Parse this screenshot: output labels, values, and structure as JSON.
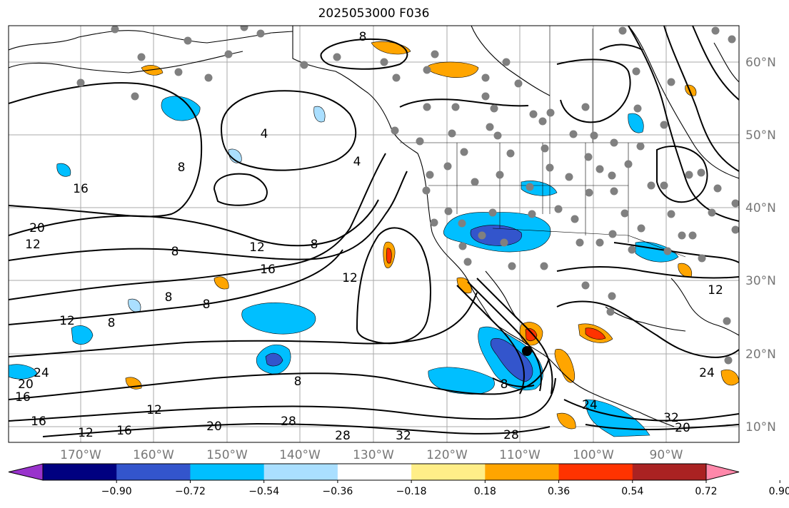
{
  "title": "2025053000 F036",
  "longitude_labels": [
    "170°W",
    "160°W",
    "150°W",
    "140°W",
    "130°W",
    "120°W",
    "110°W",
    "100°W",
    "90°W"
  ],
  "latitude_labels": [
    "60°N",
    "50°N",
    "40°N",
    "30°N",
    "20°N",
    "10°N"
  ],
  "contour_labels": [
    "8",
    "4",
    "8",
    "12",
    "16",
    "20",
    "12",
    "8",
    "12",
    "8",
    "12",
    "16",
    "24",
    "20",
    "16",
    "16",
    "12",
    "16",
    "20",
    "28",
    "28",
    "32",
    "28",
    "24",
    "32",
    "20",
    "24",
    "8",
    "8",
    "4",
    "12",
    "8",
    "8",
    "8",
    "12"
  ],
  "colorbar": {
    "tick_labels": [
      "−0.90",
      "−0.72",
      "−0.54",
      "−0.36",
      "−0.18",
      "0.18",
      "0.36",
      "0.54",
      "0.72",
      "0.90"
    ],
    "colors": [
      "#9933cc",
      "#000080",
      "#3355cc",
      "#00bfff",
      "#aadfff",
      "#ffffff",
      "#ffee88",
      "#ffa500",
      "#ff3300",
      "#aa2222",
      "#ff88aa"
    ]
  },
  "colors": {
    "contour": "#000000",
    "coast": "#000000",
    "grid": "#aaaaaa",
    "station_dot": "#808080",
    "cyclone_center": "#000000"
  }
}
